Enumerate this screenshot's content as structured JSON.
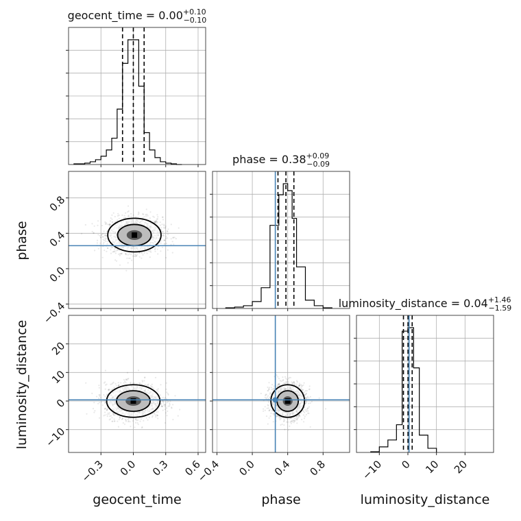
{
  "chart_data": {
    "type": "corner",
    "parameters": [
      "geocent_time",
      "phase",
      "luminosity_distance"
    ],
    "titles": [
      {
        "param": "geocent_time",
        "text": "geocent_time = 0.00",
        "sup": "+0.10",
        "sub": "−0.10"
      },
      {
        "param": "phase",
        "text": "phase = 0.38",
        "sup": "+0.09",
        "sub": "−0.09"
      },
      {
        "param": "luminosity_distance",
        "text": "luminosity_distance = 0.04",
        "sup": "+1.46",
        "sub": "−1.59"
      }
    ],
    "truths": {
      "geocent_time": null,
      "phase": 0.26,
      "luminosity_distance": 0.4
    },
    "ranges": {
      "geocent_time": [
        -0.6,
        0.67
      ],
      "phase": [
        -0.45,
        1.1
      ],
      "luminosity_distance": [
        -18,
        30
      ]
    },
    "ticks": {
      "geocent_time": [
        "−0.3",
        "0.0",
        "0.3",
        "0.6"
      ],
      "phase_x": [
        "−0.4",
        "0.0",
        "0.4",
        "0.8"
      ],
      "phase_y": [
        "−0.4",
        "0.0",
        "0.4",
        "0.8"
      ],
      "luminosity_distance_x": [
        "−10",
        "0",
        "10",
        "20"
      ],
      "luminosity_distance_y": [
        "−10",
        "0",
        "10",
        "20"
      ]
    },
    "tick_values": {
      "geocent_time": [
        -0.3,
        0.0,
        0.3,
        0.6
      ],
      "phase": [
        -0.4,
        0.0,
        0.4,
        0.8
      ],
      "luminosity_distance": [
        -10,
        0,
        10,
        20
      ]
    },
    "quantiles": {
      "geocent_time": [
        -0.1,
        0.0,
        0.1
      ],
      "phase": [
        0.29,
        0.38,
        0.47
      ],
      "luminosity_distance": [
        -1.55,
        0.04,
        1.5
      ]
    },
    "histograms": {
      "geocent_time": {
        "edges": [
          -0.55,
          -0.5,
          -0.45,
          -0.4,
          -0.35,
          -0.3,
          -0.25,
          -0.2,
          -0.15,
          -0.1,
          -0.05,
          0.0,
          0.05,
          0.1,
          0.15,
          0.2,
          0.25,
          0.3,
          0.35,
          0.4,
          0.45
        ],
        "counts": [
          1,
          1,
          2,
          4,
          7,
          12,
          21,
          38,
          80,
          146,
          180,
          180,
          113,
          46,
          21,
          10,
          4,
          2,
          1,
          0
        ]
      },
      "phase": {
        "edges": [
          -0.3,
          -0.2,
          -0.1,
          0.0,
          0.1,
          0.2,
          0.3,
          0.35,
          0.4,
          0.45,
          0.5,
          0.6,
          0.7,
          0.8,
          0.9
        ],
        "counts": [
          1,
          2,
          4,
          10,
          30,
          120,
          164,
          180,
          170,
          130,
          60,
          12,
          4,
          1
        ]
      },
      "luminosity_distance": {
        "edges": [
          -13,
          -10,
          -7,
          -4,
          -2,
          0,
          2,
          4,
          7,
          10
        ],
        "counts": [
          1,
          8,
          18,
          40,
          175,
          180,
          122,
          25,
          6
        ]
      }
    },
    "scatter_centers": {
      "phase_vs_geocent_time": {
        "x": 0.01,
        "y": 0.38,
        "sx": 0.13,
        "sy": 0.1
      },
      "luminosity_distance_vs_geocent_time": {
        "x": 0.0,
        "y": 0.0,
        "sx": 0.13,
        "sy": 3.0
      },
      "luminosity_distance_vs_phase": {
        "x": 0.4,
        "y": 0.0,
        "sx": 0.1,
        "sy": 3.0
      }
    },
    "grid": true,
    "legend": "none"
  }
}
